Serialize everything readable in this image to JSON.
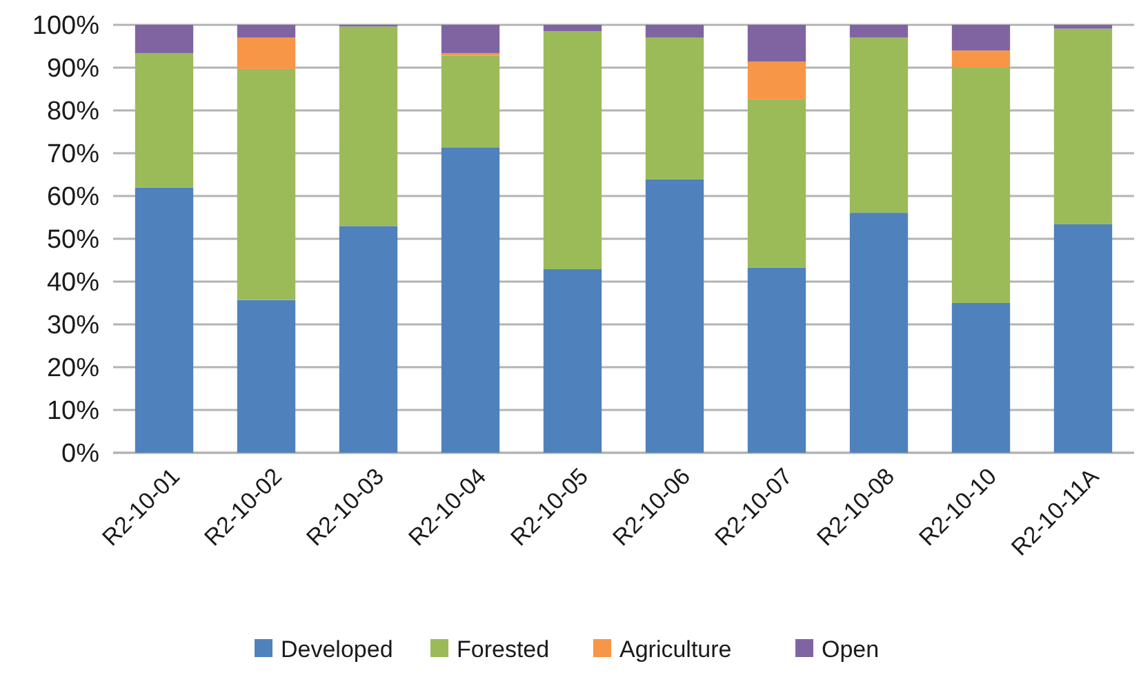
{
  "chart_data": {
    "type": "bar",
    "stacked": true,
    "categories": [
      "R2-10-01",
      "R2-10-02",
      "R2-10-03",
      "R2-10-04",
      "R2-10-05",
      "R2-10-06",
      "R2-10-07",
      "R2-10-08",
      "R2-10-10",
      "R2-10-11A"
    ],
    "series": [
      {
        "name": "Developed",
        "color": "#4f81bd",
        "values": [
          62.0,
          35.7,
          53.0,
          71.4,
          42.9,
          63.9,
          43.3,
          56.1,
          35.0,
          53.4
        ]
      },
      {
        "name": "Forested",
        "color": "#9bbb59",
        "values": [
          31.4,
          54.0,
          46.6,
          21.4,
          55.6,
          33.1,
          39.3,
          40.9,
          55.1,
          45.7
        ]
      },
      {
        "name": "Agriculture",
        "color": "#f79646",
        "values": [
          0,
          7.3,
          0,
          0.6,
          0,
          0,
          8.8,
          0,
          3.9,
          0
        ]
      },
      {
        "name": "Open",
        "color": "#8064a2",
        "values": [
          6.6,
          3.0,
          0.4,
          6.6,
          1.5,
          3.0,
          8.6,
          3.0,
          6.0,
          0.9
        ]
      }
    ],
    "ylim": [
      0,
      100
    ],
    "yticks": [
      {
        "value": 0,
        "label": "0%"
      },
      {
        "value": 10,
        "label": "10%"
      },
      {
        "value": 20,
        "label": "20%"
      },
      {
        "value": 30,
        "label": "30%"
      },
      {
        "value": 40,
        "label": "40%"
      },
      {
        "value": 50,
        "label": "50%"
      },
      {
        "value": 60,
        "label": "60%"
      },
      {
        "value": 70,
        "label": "70%"
      },
      {
        "value": 80,
        "label": "80%"
      },
      {
        "value": 90,
        "label": "90%"
      },
      {
        "value": 100,
        "label": "100%"
      }
    ],
    "grid": "y",
    "legend": "bottom"
  }
}
